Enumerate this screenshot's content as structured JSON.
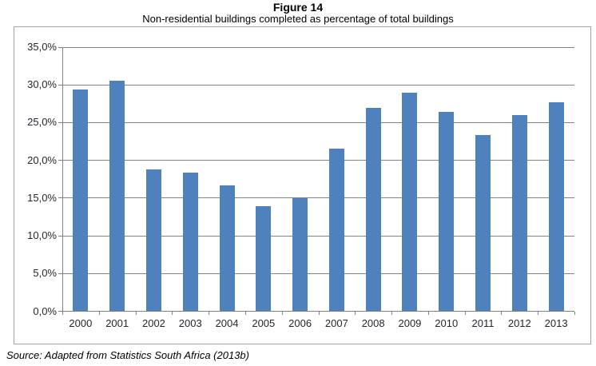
{
  "chart_data": {
    "type": "bar",
    "title": "Figure 14",
    "subtitle": "Non-residential buildings completed as percentage of total buildings",
    "categories": [
      "2000",
      "2001",
      "2002",
      "2003",
      "2004",
      "2005",
      "2006",
      "2007",
      "2008",
      "2009",
      "2010",
      "2011",
      "2012",
      "2013"
    ],
    "values": [
      29.4,
      30.6,
      18.8,
      18.4,
      16.7,
      13.9,
      15.0,
      21.5,
      26.9,
      29.0,
      26.4,
      23.4,
      26.0,
      27.7
    ],
    "xlabel": "",
    "ylabel": "",
    "ylim": [
      0,
      35
    ],
    "ytick_step": 5,
    "ytick_labels": [
      "0,0%",
      "5,0%",
      "10,0%",
      "15,0%",
      "20,0%",
      "25,0%",
      "30,0%",
      "35,0%"
    ],
    "grid": "horizontal",
    "legend": "none",
    "bar_color": "#4F81BD",
    "gridline_color": "#848484",
    "axis_color": "#808080",
    "frame_border_color": "#A3A3A3",
    "tick_label_color": "#26262E"
  },
  "source": {
    "text": "Source: Adapted from Statistics South Africa (2013b)"
  }
}
